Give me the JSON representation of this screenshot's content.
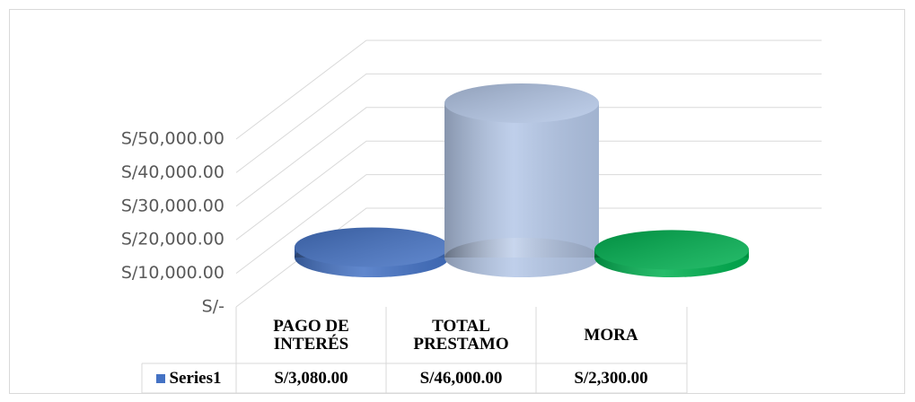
{
  "chart_data": {
    "type": "bar3d",
    "categories": [
      "PAGO DE INTERÉS",
      "TOTAL PRESTAMO",
      "MORA"
    ],
    "series": [
      {
        "name": "Series1",
        "color": "#4472c4",
        "colors": [
          "#4472c4",
          "#b4c7e7",
          "#00b050"
        ],
        "values": [
          3080,
          46000,
          2300
        ],
        "value_labels": [
          "S/3,080.00",
          "S/46,000.00",
          "S/2,300.00"
        ]
      }
    ],
    "ylim": [
      0,
      50000
    ],
    "yticks": [
      {
        "value": 0,
        "label": "S/-"
      },
      {
        "value": 10000,
        "label": "S/10,000.00"
      },
      {
        "value": 20000,
        "label": "S/20,000.00"
      },
      {
        "value": 30000,
        "label": "S/30,000.00"
      },
      {
        "value": 40000,
        "label": "S/40,000.00"
      },
      {
        "value": 50000,
        "label": "S/50,000.00"
      }
    ],
    "grid": true
  }
}
